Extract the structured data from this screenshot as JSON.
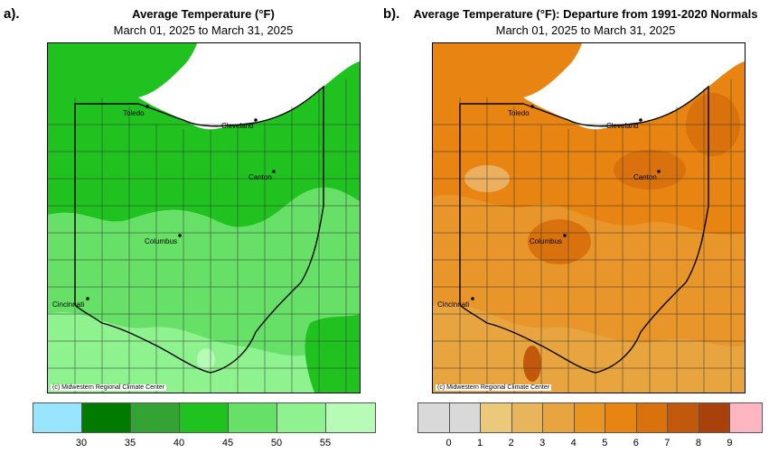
{
  "panel_a": {
    "label": "a).",
    "title": "Average Temperature (°F)",
    "subtitle": "March 01, 2025 to March 31, 2025",
    "credit": "(c) Midwestern Regional Climate Center",
    "cities": [
      "Toledo",
      "Cleveland",
      "Canton",
      "Columbus",
      "Cincinnati"
    ],
    "legend_colors": [
      "#99e5ff",
      "#007b00",
      "#33a433",
      "#1fc21f",
      "#66e066",
      "#8ef28e",
      "#b6fbb6"
    ],
    "legend_ticks": [
      "30",
      "35",
      "40",
      "45",
      "50",
      "55"
    ]
  },
  "panel_b": {
    "label": "b).",
    "title": "Average Temperature (°F): Departure from 1991-2020 Normals",
    "subtitle": "March 01, 2025 to March 31, 2025",
    "credit": "(c) Midwestern Regional Climate Center",
    "cities": [
      "Toledo",
      "Cleveland",
      "Canton",
      "Columbus",
      "Cincinnati"
    ],
    "legend_colors": [
      "#d9d9d9",
      "#d9d9d9",
      "#eac97a",
      "#e8b55c",
      "#e8a43e",
      "#e89524",
      "#e88411",
      "#d9720d",
      "#c2580c",
      "#a9420a",
      "#ffb6c1"
    ],
    "legend_ticks": [
      "0",
      "1",
      "2",
      "3",
      "4",
      "5",
      "6",
      "7",
      "8",
      "9"
    ]
  }
}
